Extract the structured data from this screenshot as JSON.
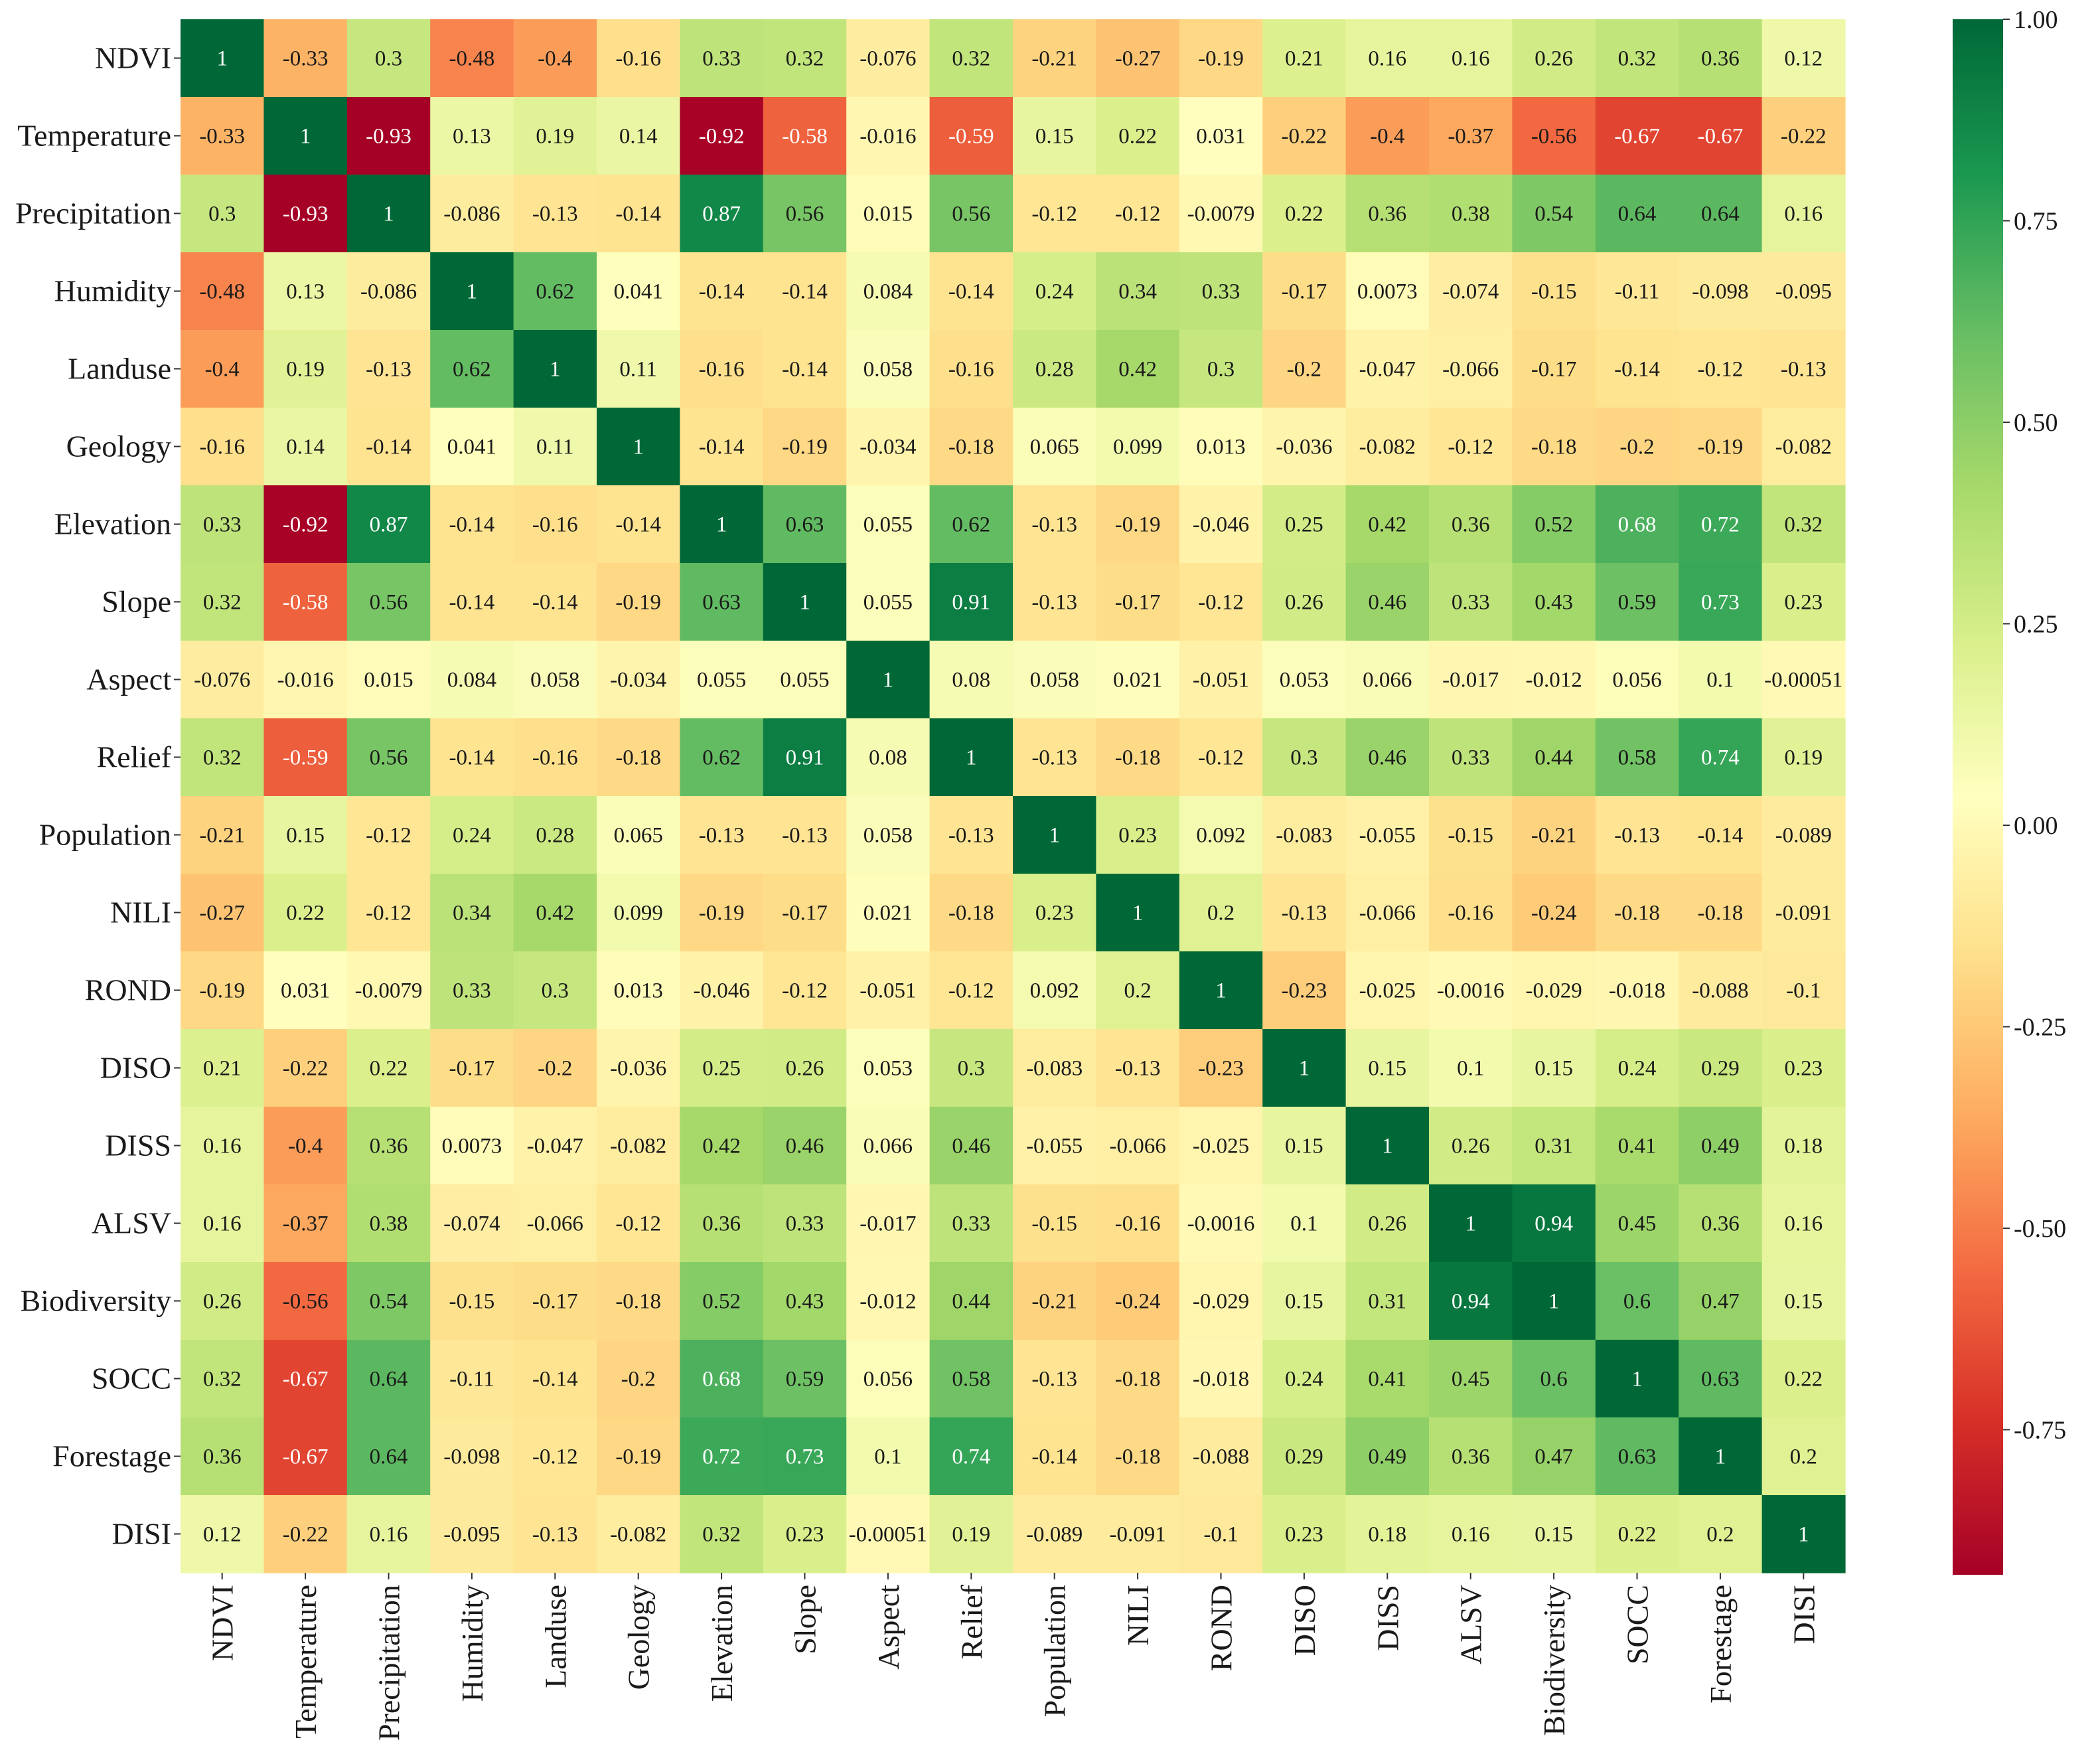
{
  "chart_data": {
    "type": "heatmap",
    "title": "",
    "labels": [
      "NDVI",
      "Temperature",
      "Precipitation",
      "Humidity",
      "Landuse",
      "Geology",
      "Elevation",
      "Slope",
      "Aspect",
      "Relief",
      "Population",
      "NILI",
      "ROND",
      "DISO",
      "DISS",
      "ALSV",
      "Biodiversity",
      "SOCC",
      "Forestage",
      "DISI"
    ],
    "matrix": [
      [
        1,
        -0.33,
        0.3,
        -0.48,
        -0.4,
        -0.16,
        0.33,
        0.32,
        -0.076,
        0.32,
        -0.21,
        -0.27,
        -0.19,
        0.21,
        0.16,
        0.16,
        0.26,
        0.32,
        0.36,
        0.12
      ],
      [
        -0.33,
        1,
        -0.93,
        0.13,
        0.19,
        0.14,
        -0.92,
        -0.58,
        -0.016,
        -0.59,
        0.15,
        0.22,
        0.031,
        -0.22,
        -0.4,
        -0.37,
        -0.56,
        -0.67,
        -0.67,
        -0.22
      ],
      [
        0.3,
        -0.93,
        1,
        -0.086,
        -0.13,
        -0.14,
        0.87,
        0.56,
        0.015,
        0.56,
        -0.12,
        -0.12,
        -0.0079,
        0.22,
        0.36,
        0.38,
        0.54,
        0.64,
        0.64,
        0.16
      ],
      [
        -0.48,
        0.13,
        -0.086,
        1,
        0.62,
        0.041,
        -0.14,
        -0.14,
        0.084,
        -0.14,
        0.24,
        0.34,
        0.33,
        -0.17,
        0.0073,
        -0.074,
        -0.15,
        -0.11,
        -0.098,
        -0.095
      ],
      [
        -0.4,
        0.19,
        -0.13,
        0.62,
        1,
        0.11,
        -0.16,
        -0.14,
        0.058,
        -0.16,
        0.28,
        0.42,
        0.3,
        -0.2,
        -0.047,
        -0.066,
        -0.17,
        -0.14,
        -0.12,
        -0.13
      ],
      [
        -0.16,
        0.14,
        -0.14,
        0.041,
        0.11,
        1,
        -0.14,
        -0.19,
        -0.034,
        -0.18,
        0.065,
        0.099,
        0.013,
        -0.036,
        -0.082,
        -0.12,
        -0.18,
        -0.2,
        -0.19,
        -0.082
      ],
      [
        0.33,
        -0.92,
        0.87,
        -0.14,
        -0.16,
        -0.14,
        1,
        0.63,
        0.055,
        0.62,
        -0.13,
        -0.19,
        -0.046,
        0.25,
        0.42,
        0.36,
        0.52,
        0.68,
        0.72,
        0.32
      ],
      [
        0.32,
        -0.58,
        0.56,
        -0.14,
        -0.14,
        -0.19,
        0.63,
        1,
        0.055,
        0.91,
        -0.13,
        -0.17,
        -0.12,
        0.26,
        0.46,
        0.33,
        0.43,
        0.59,
        0.73,
        0.23
      ],
      [
        -0.076,
        -0.016,
        0.015,
        0.084,
        0.058,
        -0.034,
        0.055,
        0.055,
        1,
        0.08,
        0.058,
        0.021,
        -0.051,
        0.053,
        0.066,
        -0.017,
        -0.012,
        0.056,
        0.1,
        -0.00051
      ],
      [
        0.32,
        -0.59,
        0.56,
        -0.14,
        -0.16,
        -0.18,
        0.62,
        0.91,
        0.08,
        1,
        -0.13,
        -0.18,
        -0.12,
        0.3,
        0.46,
        0.33,
        0.44,
        0.58,
        0.74,
        0.19
      ],
      [
        -0.21,
        0.15,
        -0.12,
        0.24,
        0.28,
        0.065,
        -0.13,
        -0.13,
        0.058,
        -0.13,
        1,
        0.23,
        0.092,
        -0.083,
        -0.055,
        -0.15,
        -0.21,
        -0.13,
        -0.14,
        -0.089
      ],
      [
        -0.27,
        0.22,
        -0.12,
        0.34,
        0.42,
        0.099,
        -0.19,
        -0.17,
        0.021,
        -0.18,
        0.23,
        1,
        0.2,
        -0.13,
        -0.066,
        -0.16,
        -0.24,
        -0.18,
        -0.18,
        -0.091
      ],
      [
        -0.19,
        0.031,
        -0.0079,
        0.33,
        0.3,
        0.013,
        -0.046,
        -0.12,
        -0.051,
        -0.12,
        0.092,
        0.2,
        1,
        -0.23,
        -0.025,
        -0.0016,
        -0.029,
        -0.018,
        -0.088,
        -0.1
      ],
      [
        0.21,
        -0.22,
        0.22,
        -0.17,
        -0.2,
        -0.036,
        0.25,
        0.26,
        0.053,
        0.3,
        -0.083,
        -0.13,
        -0.23,
        1,
        0.15,
        0.1,
        0.15,
        0.24,
        0.29,
        0.23
      ],
      [
        0.16,
        -0.4,
        0.36,
        0.0073,
        -0.047,
        -0.082,
        0.42,
        0.46,
        0.066,
        0.46,
        -0.055,
        -0.066,
        -0.025,
        0.15,
        1,
        0.26,
        0.31,
        0.41,
        0.49,
        0.18
      ],
      [
        0.16,
        -0.37,
        0.38,
        -0.074,
        -0.066,
        -0.12,
        0.36,
        0.33,
        -0.017,
        0.33,
        -0.15,
        -0.16,
        -0.0016,
        0.1,
        0.26,
        1,
        0.94,
        0.45,
        0.36,
        0.16
      ],
      [
        0.26,
        -0.56,
        0.54,
        -0.15,
        -0.17,
        -0.18,
        0.52,
        0.43,
        -0.012,
        0.44,
        -0.21,
        -0.24,
        -0.029,
        0.15,
        0.31,
        0.94,
        1,
        0.6,
        0.47,
        0.15
      ],
      [
        0.32,
        -0.67,
        0.64,
        -0.11,
        -0.14,
        -0.2,
        0.68,
        0.59,
        0.056,
        0.58,
        -0.13,
        -0.18,
        -0.018,
        0.24,
        0.41,
        0.45,
        0.6,
        1,
        0.63,
        0.22
      ],
      [
        0.36,
        -0.67,
        0.64,
        -0.098,
        -0.12,
        -0.19,
        0.72,
        0.73,
        0.1,
        0.74,
        -0.14,
        -0.18,
        -0.088,
        0.29,
        0.49,
        0.36,
        0.47,
        0.63,
        1,
        0.2
      ],
      [
        0.12,
        -0.22,
        0.16,
        -0.095,
        -0.13,
        -0.082,
        0.32,
        0.23,
        -0.00051,
        0.19,
        -0.089,
        -0.091,
        -0.1,
        0.23,
        0.18,
        0.16,
        0.15,
        0.22,
        0.2,
        1
      ]
    ],
    "vmin": -0.93,
    "vmax": 1.0,
    "colormap": "RdYlGn",
    "colorbar_ticks": [
      "1.00",
      "0.75",
      "0.50",
      "0.25",
      "0.00",
      "-0.25",
      "-0.50",
      "-0.75"
    ],
    "colorbar_tick_values": [
      1.0,
      0.75,
      0.5,
      0.25,
      0.0,
      -0.25,
      -0.5,
      -0.75
    ]
  }
}
